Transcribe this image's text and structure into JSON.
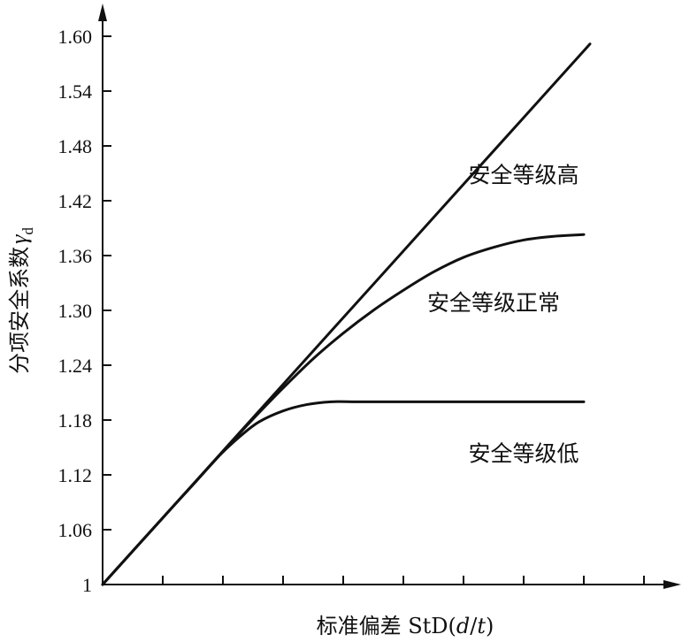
{
  "chart_data": {
    "type": "line",
    "title": "",
    "xlabel": {
      "main": "标准偏差 StD",
      "paren_open": "(",
      "d": "d",
      "slash": "/",
      "t": "t",
      "paren_close": ")"
    },
    "ylabel": {
      "main": "分项安全系数",
      "symbol": "γ",
      "subscript": "d"
    },
    "y_ticks": [
      "1",
      "1.06",
      "1.12",
      "1.18",
      "1.24",
      "1.30",
      "1.36",
      "1.42",
      "1.48",
      "1.54",
      "1.60"
    ],
    "ylim": [
      1.0,
      1.62
    ],
    "xlim": [
      0,
      9.3
    ],
    "x_tick_count": 9,
    "grid": false,
    "series": [
      {
        "label": "安全等级高",
        "x": [
          0,
          1,
          2,
          3,
          4,
          5,
          6,
          7,
          8,
          8.08
        ],
        "y": [
          1.0,
          1.073,
          1.146,
          1.219,
          1.292,
          1.365,
          1.438,
          1.511,
          1.584,
          1.59
        ]
      },
      {
        "label": "安全等级正常",
        "x": [
          0,
          1,
          1.4,
          1.8,
          2.2,
          2.6,
          3.0,
          3.5,
          4.0,
          4.5,
          5.0,
          5.5,
          6.0,
          6.5,
          7.0,
          7.5,
          8.0
        ],
        "y": [
          1.0,
          1.073,
          1.102,
          1.131,
          1.16,
          1.188,
          1.215,
          1.247,
          1.275,
          1.3,
          1.322,
          1.342,
          1.358,
          1.369,
          1.377,
          1.381,
          1.383
        ]
      },
      {
        "label": "安全等级低",
        "x": [
          0,
          1,
          1.5,
          1.8,
          2.0,
          2.3,
          2.6,
          3.0,
          3.4,
          3.8,
          4.2,
          4.6,
          5.0,
          6.0,
          7.0,
          8.0
        ],
        "y": [
          1.0,
          1.073,
          1.109,
          1.131,
          1.145,
          1.163,
          1.178,
          1.19,
          1.197,
          1.2,
          1.2,
          1.2,
          1.2,
          1.2,
          1.2,
          1.2
        ]
      }
    ],
    "annotations": [
      {
        "text": "安全等级高",
        "x": 7.0,
        "y": 1.44
      },
      {
        "text": "安全等级正常",
        "x": 6.5,
        "y": 1.3
      },
      {
        "text": "安全等级低",
        "x": 7.0,
        "y": 1.135
      }
    ]
  }
}
